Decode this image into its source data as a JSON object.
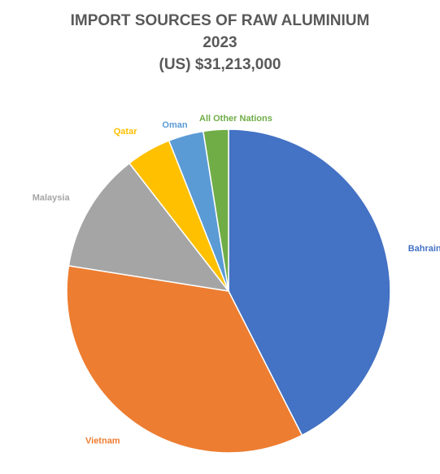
{
  "chart_data": {
    "type": "pie",
    "title": "IMPORT SOURCES OF RAW ALUMINIUM",
    "subtitle_lines": [
      "2023",
      "(US) $31,213,000"
    ],
    "legend": "none",
    "labels_outside": true,
    "slices": [
      {
        "name": "Bahrain",
        "value": 42.5,
        "color": "#4472C4"
      },
      {
        "name": "Vietnam",
        "value": 35.0,
        "color": "#ED7D31"
      },
      {
        "name": "Malaysia",
        "value": 12.0,
        "color": "#A5A5A5"
      },
      {
        "name": "Qatar",
        "value": 4.5,
        "color": "#FFC000"
      },
      {
        "name": "Oman",
        "value": 3.5,
        "color": "#5B9BD5"
      },
      {
        "name": "All Other Nations",
        "value": 2.5,
        "color": "#70AD47"
      }
    ]
  }
}
